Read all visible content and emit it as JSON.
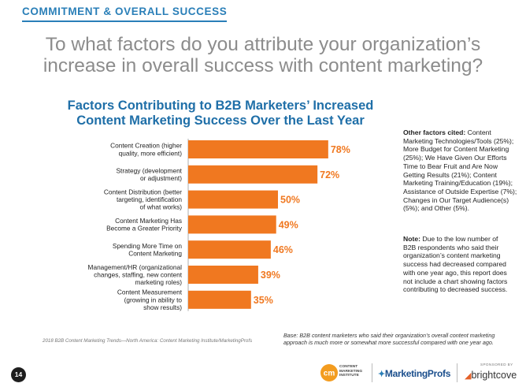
{
  "header": {
    "section_label": "COMMITMENT & OVERALL SUCCESS",
    "question_line1": "To what factors do you attribute your organization’s",
    "question_line2": "increase in overall success with content marketing?"
  },
  "chart_data": {
    "type": "bar",
    "orientation": "horizontal",
    "title_line1": "Factors Contributing to B2B Marketers’ Increased",
    "title_line2": "Content Marketing Success Over the Last Year",
    "bar_color": "#f07820",
    "label_color": "#f07820",
    "grid": false,
    "xlim": [
      0,
      100
    ],
    "categories": [
      [
        "Content Creation (higher",
        "quality, more efficient)"
      ],
      [
        "Strategy (development",
        "or adjustment)"
      ],
      [
        "Content Distribution (better",
        "targeting, identification",
        "of what works)"
      ],
      [
        "Content Marketing Has",
        "Become a Greater Priority"
      ],
      [
        "Spending More Time on",
        "Content Marketing"
      ],
      [
        "Management/HR (organizational",
        "changes, staffing, new content",
        "marketing roles)"
      ],
      [
        "Content Measurement",
        "(growing in ability to",
        "show results)"
      ]
    ],
    "values": [
      78,
      72,
      50,
      49,
      46,
      39,
      35
    ],
    "value_labels": [
      "78%",
      "72%",
      "50%",
      "49%",
      "46%",
      "39%",
      "35%"
    ]
  },
  "sidebar": {
    "other_heading": "Other factors cited:",
    "other_lines": [
      "Content",
      "Marketing Technologies/Tools (25%);",
      "More Budget for Content Marketing",
      "(25%); We Have Given Our Efforts",
      "Time to Bear Fruit and Are Now",
      "Getting Results (21%); Content",
      "Marketing Training/Education (19%);",
      "Assistance of Outside Expertise (7%);",
      "Changes in Our Target Audience(s)",
      "(5%); and Other (5%)."
    ],
    "note_heading": "Note:",
    "note_lines": [
      "Due to the low number of",
      "B2B respondents who said their",
      "organization’s content marketing",
      "success had decreased compared",
      "with one year ago, this report does",
      "not include a chart showing factors",
      "contributing to decreased success."
    ]
  },
  "footer": {
    "source": "2018 B2B Content Marketing Trends—North America: Content Marketing Institute/MarketingProfs",
    "base_line1": "Base: B2B content marketers who said their organization’s overall content marketing",
    "base_line2": "approach is much more or somewhat more successful compared with one year ago.",
    "page_number": "14",
    "cmi_text_lines": [
      "CONTENT",
      "MARKETING",
      "INSTITUTE"
    ],
    "marketingprofs": "MarketingProfs",
    "sponsored_by": "SPONSORED BY",
    "brightcove": "brightcove"
  }
}
